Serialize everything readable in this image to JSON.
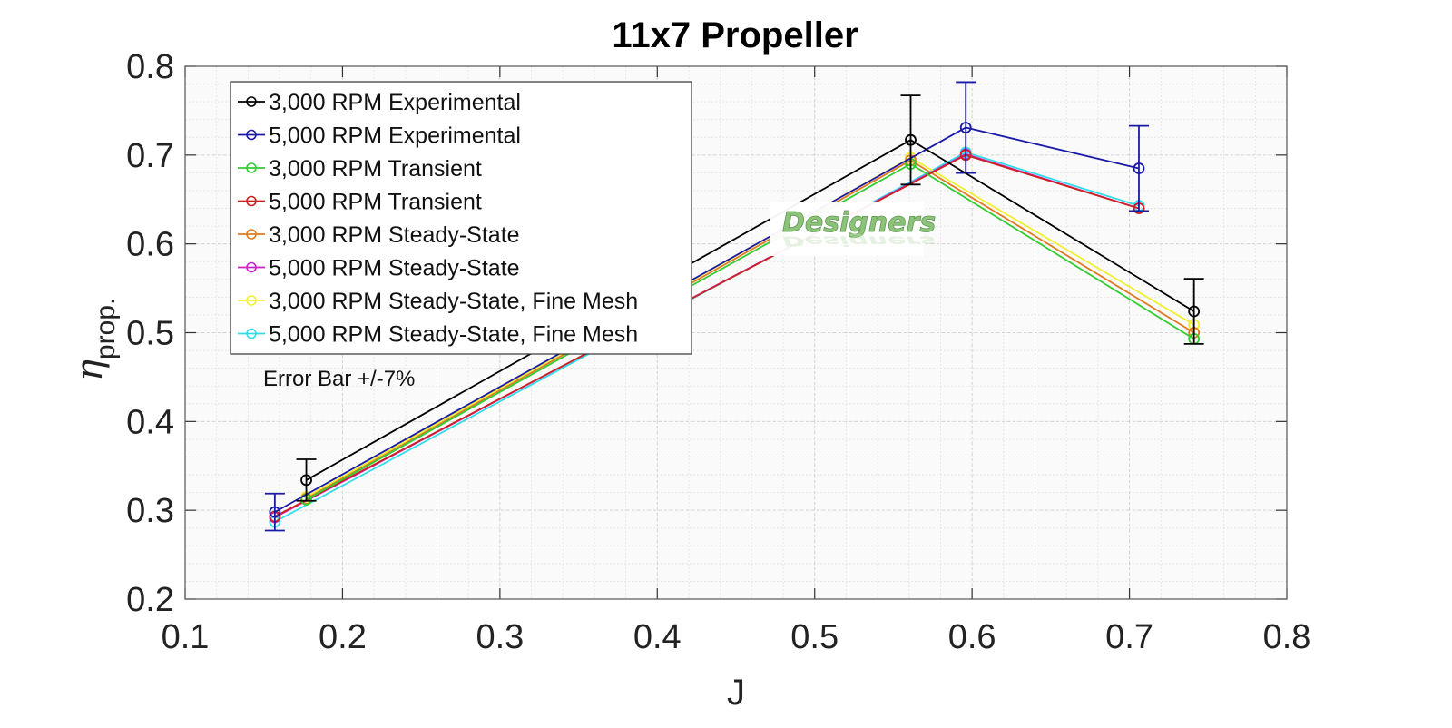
{
  "chart_data": {
    "type": "line",
    "title": "11x7 Propeller",
    "xlabel": "J",
    "ylabel": "η_prop.",
    "ylabel_main": "η",
    "ylabel_sub": "prop.",
    "xlim": [
      0.1,
      0.8
    ],
    "ylim": [
      0.2,
      0.8
    ],
    "xticks": [
      "0.1",
      "0.2",
      "0.3",
      "0.4",
      "0.5",
      "0.6",
      "0.7",
      "0.8"
    ],
    "yticks": [
      "0.8",
      "0.7",
      "0.6",
      "0.5",
      "0.4",
      "0.3",
      "0.2"
    ],
    "grid": true,
    "minor_grid": true,
    "legend_position": "upper left",
    "annotation": "Error Bar +/-7%",
    "watermark": "Designers",
    "series": [
      {
        "name": "3,000 RPM Experimental",
        "color": "#000000",
        "x": [
          0.177,
          0.561,
          0.741
        ],
        "y": [
          0.334,
          0.717,
          0.524
        ],
        "error_pct": 7
      },
      {
        "name": "5,000 RPM Experimental",
        "color": "#1a1aa6",
        "x": [
          0.157,
          0.596,
          0.706
        ],
        "y": [
          0.298,
          0.731,
          0.685
        ],
        "error_pct": 7
      },
      {
        "name": "3,000 RPM Transient",
        "color": "#33cc33",
        "x": [
          0.177,
          0.561,
          0.741
        ],
        "y": [
          0.312,
          0.69,
          0.493
        ]
      },
      {
        "name": "5,000 RPM Transient",
        "color": "#cc2222",
        "x": [
          0.157,
          0.596,
          0.706
        ],
        "y": [
          0.293,
          0.7,
          0.64
        ]
      },
      {
        "name": "3,000 RPM Steady-State",
        "color": "#e07b20",
        "x": [
          0.177,
          0.561,
          0.741
        ],
        "y": [
          0.313,
          0.694,
          0.5
        ]
      },
      {
        "name": "5,000 RPM Steady-State",
        "color": "#cc22cc",
        "x": [
          0.157,
          0.596,
          0.706
        ],
        "y": [
          0.292,
          0.701,
          0.64
        ]
      },
      {
        "name": "3,000 RPM Steady-State, Fine Mesh",
        "color": "#f0f030",
        "x": [
          0.177,
          0.561,
          0.741
        ],
        "y": [
          0.315,
          0.697,
          0.509
        ]
      },
      {
        "name": "5,000 RPM Steady-State, Fine Mesh",
        "color": "#33dde8",
        "x": [
          0.157,
          0.596,
          0.706
        ],
        "y": [
          0.287,
          0.703,
          0.643
        ]
      }
    ]
  }
}
